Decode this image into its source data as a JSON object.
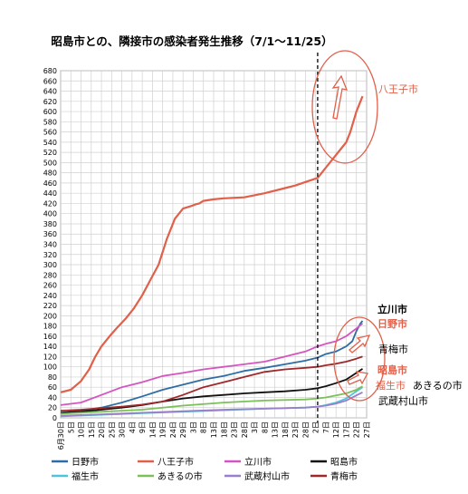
{
  "chart_data": {
    "type": "line",
    "title": "昭島市との、隣接市の感染者発生推移（7/1～11/25）",
    "ylim": [
      0,
      680
    ],
    "y_ticks": [
      0,
      20,
      40,
      60,
      80,
      100,
      120,
      140,
      160,
      180,
      200,
      220,
      240,
      260,
      280,
      300,
      320,
      340,
      360,
      380,
      400,
      420,
      440,
      460,
      480,
      500,
      520,
      540,
      560,
      580,
      600,
      620,
      640,
      660,
      680
    ],
    "x_tick_labels": [
      "6月30日",
      "5日",
      "10日",
      "15日",
      "20日",
      "25日",
      "30日",
      "4日",
      "9日",
      "14日",
      "19日",
      "24日",
      "29日",
      "3日",
      "8日",
      "13日",
      "18日",
      "23日",
      "28日",
      "3日",
      "8日",
      "13日",
      "18日",
      "23日",
      "28日",
      "2日",
      "7日",
      "12日",
      "17日",
      "22日",
      "27日"
    ],
    "x_range": [
      0,
      150
    ],
    "grid": true,
    "legend_position": "bottom",
    "marker_date_index": 126,
    "series": [
      {
        "name": "日野市",
        "color": "#2e6da4",
        "x": [
          0,
          10,
          20,
          30,
          40,
          50,
          60,
          70,
          80,
          90,
          100,
          110,
          120,
          126,
          130,
          135,
          140,
          143,
          145,
          147,
          148
        ],
        "values": [
          10,
          14,
          20,
          30,
          42,
          55,
          65,
          75,
          82,
          92,
          98,
          105,
          112,
          118,
          125,
          130,
          140,
          150,
          170,
          185,
          190
        ]
      },
      {
        "name": "八王子市",
        "color": "#e0604a",
        "x": [
          0,
          5,
          10,
          14,
          17,
          20,
          24,
          28,
          32,
          36,
          40,
          44,
          48,
          52,
          56,
          60,
          64,
          66,
          68,
          70,
          75,
          80,
          90,
          100,
          110,
          115,
          120,
          126,
          130,
          134,
          138,
          140,
          142,
          145,
          148
        ],
        "values": [
          50,
          55,
          72,
          95,
          120,
          140,
          160,
          178,
          195,
          215,
          240,
          270,
          300,
          350,
          390,
          410,
          415,
          418,
          420,
          425,
          428,
          430,
          432,
          440,
          450,
          455,
          462,
          470,
          490,
          510,
          530,
          540,
          560,
          600,
          630
        ]
      },
      {
        "name": "立川市",
        "color": "#d455c0",
        "x": [
          0,
          10,
          20,
          30,
          40,
          50,
          60,
          70,
          80,
          90,
          100,
          110,
          120,
          126,
          130,
          135,
          140,
          145,
          148
        ],
        "values": [
          25,
          30,
          45,
          60,
          70,
          82,
          88,
          95,
          100,
          105,
          110,
          120,
          130,
          140,
          145,
          150,
          160,
          175,
          185
        ]
      },
      {
        "name": "昭島市",
        "color": "#111111",
        "x": [
          0,
          10,
          20,
          30,
          40,
          50,
          60,
          70,
          80,
          90,
          100,
          110,
          120,
          126,
          130,
          135,
          140,
          145,
          148
        ],
        "values": [
          10,
          12,
          16,
          20,
          25,
          32,
          38,
          42,
          45,
          48,
          50,
          52,
          55,
          58,
          62,
          68,
          75,
          88,
          96
        ]
      },
      {
        "name": "福生市",
        "color": "#4fc3dd",
        "x": [
          0,
          20,
          40,
          60,
          80,
          100,
          120,
          126,
          130,
          135,
          140,
          145,
          148
        ],
        "values": [
          3,
          6,
          9,
          12,
          15,
          18,
          20,
          22,
          25,
          30,
          38,
          52,
          60
        ]
      },
      {
        "name": "あきるの市",
        "color": "#7cc05a",
        "x": [
          0,
          20,
          40,
          60,
          80,
          100,
          120,
          126,
          130,
          135,
          140,
          145,
          148
        ],
        "values": [
          8,
          12,
          16,
          24,
          30,
          34,
          36,
          38,
          40,
          44,
          48,
          55,
          62
        ]
      },
      {
        "name": "武蔵村山市",
        "color": "#9a7fc8",
        "x": [
          0,
          20,
          40,
          60,
          80,
          100,
          120,
          126,
          130,
          135,
          140,
          145,
          148
        ],
        "values": [
          4,
          7,
          10,
          13,
          16,
          18,
          20,
          22,
          24,
          28,
          34,
          44,
          50
        ]
      },
      {
        "name": "青梅市",
        "color": "#a0282a",
        "x": [
          0,
          10,
          20,
          30,
          40,
          50,
          60,
          70,
          80,
          90,
          100,
          110,
          120,
          126,
          130,
          135,
          140,
          145,
          148
        ],
        "values": [
          14,
          16,
          19,
          22,
          26,
          32,
          45,
          60,
          70,
          80,
          90,
          95,
          98,
          100,
          103,
          106,
          110,
          116,
          120
        ]
      }
    ]
  },
  "annotations": {
    "hachioji": "八王子市",
    "tachikawa": "立川市",
    "hino": "日野市",
    "ome": "青梅市",
    "akishima": "昭島市",
    "fussa": "福生市",
    "akiruno": "あきるの市",
    "musashimurayama": "武蔵村山市"
  },
  "colors": {
    "annotation_red": "#e0604a",
    "grid": "#d0d0d0"
  }
}
